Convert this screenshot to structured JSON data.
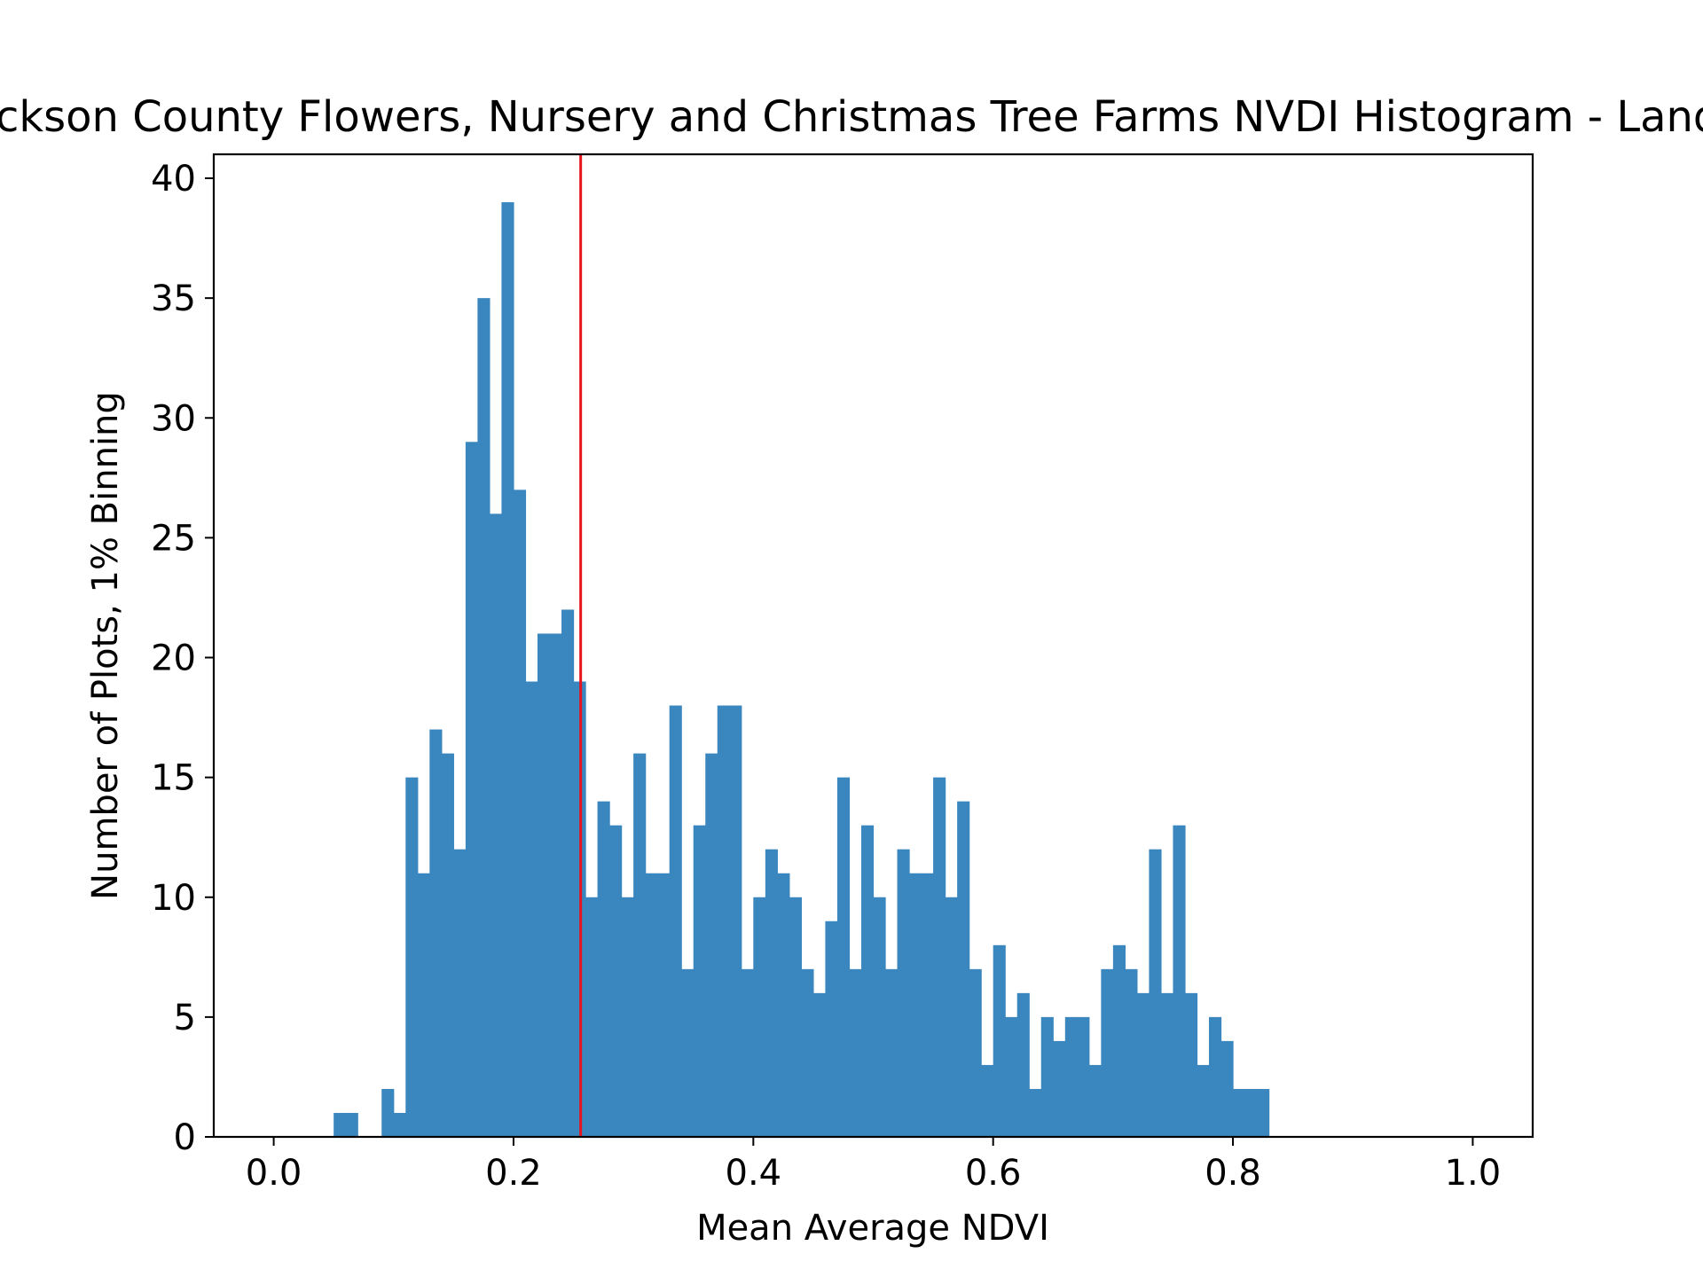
{
  "chart_data": {
    "type": "bar",
    "title": "Jackson County Flowers, Nursery and Christmas Tree Farms NVDI Histogram - Landsat",
    "xlabel": "Mean Average NDVI",
    "ylabel": "Number of Plots, 1% Binning",
    "xlim": [
      -0.05,
      1.05
    ],
    "ylim": [
      0,
      41
    ],
    "xticks": [
      0.0,
      0.2,
      0.4,
      0.6,
      0.8,
      1.0
    ],
    "xtick_labels": [
      "0.0",
      "0.2",
      "0.4",
      "0.6",
      "0.8",
      "1.0"
    ],
    "yticks": [
      0,
      5,
      10,
      15,
      20,
      25,
      30,
      35,
      40
    ],
    "ytick_labels": [
      "0",
      "5",
      "10",
      "15",
      "20",
      "25",
      "30",
      "35",
      "40"
    ],
    "bin_width": 0.01,
    "bin_start": 0.05,
    "counts": [
      1,
      1,
      0,
      0,
      2,
      1,
      15,
      11,
      17,
      16,
      12,
      29,
      35,
      26,
      39,
      27,
      19,
      21,
      21,
      22,
      19,
      10,
      14,
      13,
      10,
      16,
      11,
      11,
      18,
      7,
      13,
      16,
      18,
      18,
      7,
      10,
      12,
      11,
      10,
      7,
      6,
      9,
      15,
      7,
      13,
      10,
      7,
      12,
      11,
      11,
      15,
      10,
      14,
      7,
      3,
      8,
      5,
      6,
      2,
      5,
      4,
      5,
      5,
      3,
      7,
      8,
      7,
      6,
      12,
      6,
      13,
      6,
      3,
      5,
      4,
      2,
      2,
      2
    ],
    "bar_color": "#3a86bf",
    "reference_line": {
      "x": 0.256,
      "color": "#e8141d"
    },
    "grid": false
  }
}
